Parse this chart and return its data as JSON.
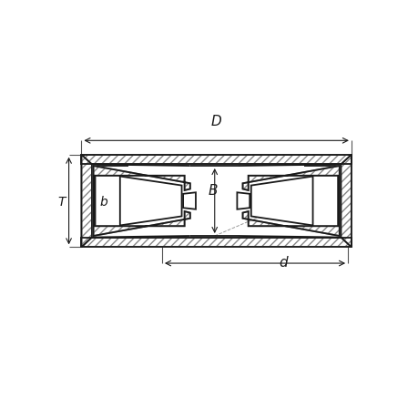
{
  "bg_color": "#ffffff",
  "line_color": "#1a1a1a",
  "fig_width": 4.6,
  "fig_height": 4.6,
  "dpi": 100,
  "labels": {
    "d_label": "d",
    "D_label": "D",
    "B_label": "B",
    "T_label": "T",
    "b_label": "b"
  }
}
